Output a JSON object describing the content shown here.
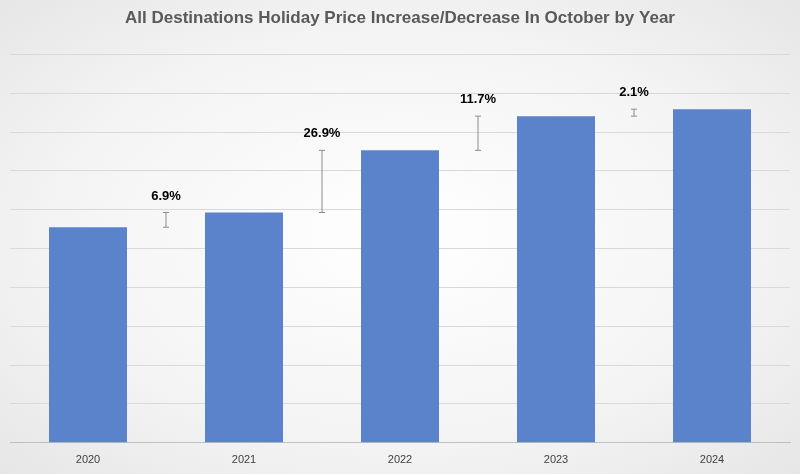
{
  "chart_data": {
    "type": "bar",
    "title": "All Destinations Holiday Price Increase/Decrease In October by Year",
    "categories": [
      "2020",
      "2021",
      "2022",
      "2023",
      "2024"
    ],
    "values": [
      5.55,
      5.93,
      7.53,
      8.41,
      8.59
    ],
    "color": "#5b83cc",
    "ylim": [
      0,
      10
    ],
    "yticks": [
      0,
      1,
      2,
      3,
      4,
      5,
      6,
      7,
      8,
      9,
      10
    ],
    "grid": true,
    "tick_labels": "x",
    "annotations": [
      {
        "from": "2020",
        "to": "2021",
        "text": "6.9%"
      },
      {
        "from": "2021",
        "to": "2022",
        "text": "26.9%"
      },
      {
        "from": "2022",
        "to": "2023",
        "text": "11.7%"
      },
      {
        "from": "2023",
        "to": "2024",
        "text": "2.1%"
      }
    ]
  }
}
